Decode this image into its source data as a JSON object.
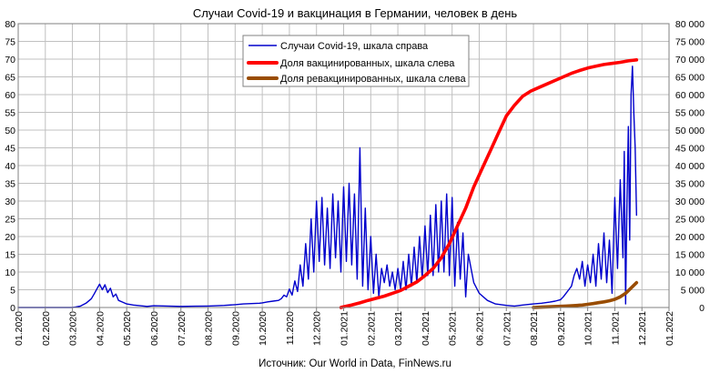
{
  "chart_data": {
    "type": "line",
    "title": "Случаи Covid-19 и вакцинация в Германии, человек в день",
    "source": "Источник: Our World in Data, FinNews.ru",
    "x_tick_labels": [
      "01.2020",
      "02.2020",
      "03.2020",
      "04.2020",
      "05.2020",
      "06.2020",
      "07.2020",
      "08.2020",
      "09.2020",
      "10.2020",
      "11.2020",
      "12.2020",
      "01.2021",
      "02.2021",
      "03.2021",
      "04.2021",
      "05.2021",
      "06.2021",
      "07.2021",
      "08.2021",
      "09.2021",
      "10.2021",
      "11.2021",
      "12.2021",
      "01.2022"
    ],
    "left_axis": {
      "ylim": [
        0,
        80
      ],
      "tick_labels": [
        "0",
        "5",
        "10",
        "15",
        "20",
        "25",
        "30",
        "35",
        "40",
        "45",
        "50",
        "55",
        "60",
        "65",
        "70",
        "75",
        "80"
      ]
    },
    "right_axis": {
      "ylim": [
        0,
        80000
      ],
      "tick_labels": [
        "0",
        "5 000",
        "10 000",
        "15 000",
        "20 000",
        "25 000",
        "30 000",
        "35 000",
        "40 000",
        "45 000",
        "50 000",
        "55 000",
        "60 000",
        "65 000",
        "70 000",
        "75 000",
        "80 000"
      ]
    },
    "grid": true,
    "legend_position": "top-center",
    "series": [
      {
        "name": "Случаи Covid-19, шкала справа",
        "axis": "right",
        "color": "#0000cc",
        "x": [
          0,
          1,
          2,
          2.1,
          2.3,
          2.5,
          2.7,
          2.8,
          2.9,
          3.0,
          3.1,
          3.2,
          3.3,
          3.4,
          3.5,
          3.6,
          3.7,
          3.85,
          4.0,
          4.25,
          4.5,
          4.75,
          5.0,
          5.5,
          6.0,
          6.5,
          7.0,
          7.3,
          7.6,
          8.0,
          8.3,
          8.6,
          8.9,
          9.0,
          9.2,
          9.4,
          9.6,
          9.7,
          9.8,
          9.9,
          10.0,
          10.1,
          10.2,
          10.3,
          10.4,
          10.5,
          10.6,
          10.7,
          10.8,
          10.9,
          11.0,
          11.1,
          11.2,
          11.3,
          11.4,
          11.5,
          11.6,
          11.7,
          11.8,
          11.9,
          12.0,
          12.1,
          12.2,
          12.3,
          12.4,
          12.5,
          12.6,
          12.7,
          12.8,
          12.9,
          13.0,
          13.1,
          13.2,
          13.3,
          13.4,
          13.5,
          13.6,
          13.7,
          13.8,
          13.9,
          14.0,
          14.1,
          14.2,
          14.3,
          14.4,
          14.5,
          14.6,
          14.7,
          14.8,
          14.9,
          15.0,
          15.1,
          15.2,
          15.3,
          15.4,
          15.5,
          15.6,
          15.7,
          15.8,
          15.9,
          16.0,
          16.1,
          16.2,
          16.3,
          16.4,
          16.5,
          16.6,
          16.8,
          17.0,
          17.3,
          17.6,
          18.0,
          18.3,
          18.6,
          19.0,
          19.3,
          19.6,
          19.8,
          20.0,
          20.1,
          20.2,
          20.3,
          20.4,
          20.5,
          20.6,
          20.7,
          20.8,
          20.9,
          21.0,
          21.1,
          21.2,
          21.3,
          21.4,
          21.5,
          21.6,
          21.7,
          21.8,
          21.9,
          22.0,
          22.1,
          22.2,
          22.3,
          22.35,
          22.4,
          22.45,
          22.5,
          22.55,
          22.6,
          22.65,
          22.7,
          22.75,
          22.8
        ],
        "y": [
          0,
          0,
          0,
          100,
          400,
          1200,
          2500,
          3800,
          5200,
          6600,
          5000,
          6400,
          4200,
          5400,
          3000,
          3800,
          2000,
          1500,
          1000,
          700,
          500,
          300,
          500,
          400,
          300,
          350,
          400,
          500,
          600,
          800,
          1000,
          1100,
          1200,
          1300,
          1600,
          1800,
          2000,
          2500,
          3500,
          3000,
          5200,
          3500,
          7500,
          4500,
          12000,
          6000,
          18000,
          8000,
          25000,
          10000,
          30000,
          13000,
          31000,
          12000,
          28000,
          11000,
          32000,
          14000,
          30000,
          10000,
          34000,
          13000,
          35000,
          12000,
          32000,
          8000,
          45000,
          6000,
          28000,
          5000,
          20000,
          4000,
          15000,
          3000,
          11000,
          7000,
          12000,
          6000,
          10000,
          5000,
          11000,
          5000,
          13000,
          5000,
          15000,
          6000,
          17000,
          7000,
          20000,
          8000,
          23000,
          9000,
          26000,
          9000,
          29000,
          10000,
          30000,
          10000,
          32000,
          9000,
          31000,
          6000,
          24000,
          8000,
          21000,
          3000,
          15000,
          7000,
          4000,
          2000,
          1000,
          600,
          400,
          700,
          1000,
          1200,
          1500,
          1800,
          2200,
          3000,
          4000,
          5000,
          6000,
          9000,
          11000,
          8000,
          13000,
          6000,
          12000,
          7000,
          15000,
          6000,
          18000,
          8000,
          21000,
          7000,
          19000,
          4000,
          31000,
          11000,
          36000,
          14000,
          44000,
          1000,
          30000,
          51000,
          19000,
          60000,
          68000,
          55000,
          45000,
          26000
        ],
        "y_unit": "cases per day"
      },
      {
        "name": "Доля вакцинированных, шкала слева",
        "axis": "left",
        "color": "#ff0000",
        "x": [
          11.9,
          12.0,
          12.3,
          12.6,
          12.9,
          13.2,
          13.5,
          13.8,
          14.1,
          14.4,
          14.7,
          15.0,
          15.3,
          15.6,
          15.9,
          16.2,
          16.5,
          16.8,
          17.1,
          17.4,
          17.7,
          18.0,
          18.3,
          18.6,
          18.9,
          19.2,
          19.5,
          19.8,
          20.1,
          20.4,
          20.7,
          21.0,
          21.3,
          21.6,
          21.9,
          22.2,
          22.5,
          22.8
        ],
        "y": [
          0,
          0.2,
          0.7,
          1.3,
          2,
          2.6,
          3.2,
          4,
          4.8,
          6,
          7.2,
          9,
          11,
          14,
          18,
          23,
          28,
          34,
          39,
          44,
          49,
          54,
          57,
          59.5,
          61,
          62,
          63,
          64,
          65,
          66,
          66.8,
          67.5,
          68,
          68.5,
          68.8,
          69.1,
          69.5,
          69.8
        ],
        "y_unit": "%"
      },
      {
        "name": "Доля ревакцинированных, шкала слева",
        "axis": "left",
        "color": "#994c00",
        "x": [
          19.0,
          19.3,
          19.6,
          19.9,
          20.2,
          20.5,
          20.8,
          21.0,
          21.2,
          21.4,
          21.6,
          21.8,
          22.0,
          22.2,
          22.4,
          22.6,
          22.8
        ],
        "y": [
          0,
          0.1,
          0.2,
          0.3,
          0.4,
          0.55,
          0.7,
          0.9,
          1.1,
          1.35,
          1.6,
          1.9,
          2.3,
          3.0,
          4.0,
          5.5,
          7
        ],
        "y_unit": "%"
      }
    ]
  }
}
